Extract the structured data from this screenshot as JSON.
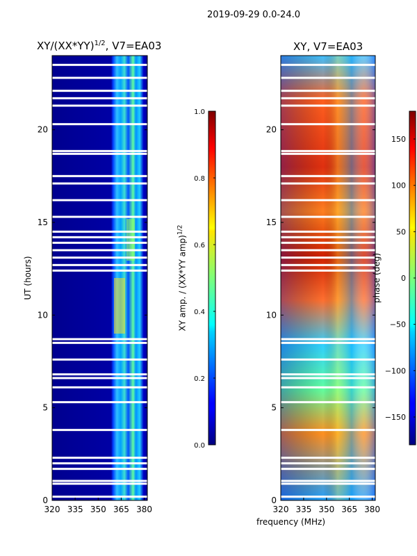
{
  "suptitle": "2019-09-29 0.0-24.0",
  "chart_data": [
    {
      "type": "heatmap",
      "title_prefix": "XY/(XX*YY)",
      "title_exp": "1/2",
      "title_suffix": ", V7=EA03",
      "xlabel": "",
      "ylabel": "UT (hours)",
      "xlim": [
        320,
        382
      ],
      "ylim": [
        0,
        24
      ],
      "xticks": [
        "320",
        "335",
        "350",
        "365",
        "380"
      ],
      "yticks": [
        "0",
        "5",
        "10",
        "15",
        "20"
      ],
      "colorbar": {
        "label_prefix": "XY amp. / (XX*YY amp)",
        "label_exp": "1/2",
        "range": [
          0.0,
          1.0
        ],
        "ticks": [
          "0.0",
          "0.2",
          "0.4",
          "0.6",
          "0.8",
          "1.0"
        ]
      }
    },
    {
      "type": "heatmap",
      "title": "XY, V7=EA03",
      "xlabel": "frequency (MHz)",
      "ylabel": "",
      "xlim": [
        320,
        382
      ],
      "ylim": [
        0,
        24
      ],
      "xticks": [
        "320",
        "335",
        "350",
        "365",
        "380"
      ],
      "yticks": [
        "0",
        "5",
        "10",
        "15",
        "20"
      ],
      "colorbar": {
        "label": "phase (deg)",
        "range": [
          -180,
          180
        ],
        "ticks": [
          "−150",
          "−100",
          "−50",
          "0",
          "50",
          "100",
          "150"
        ]
      }
    }
  ],
  "gap_hours": [
    0.2,
    0.9,
    1.05,
    1.7,
    2.0,
    2.3,
    3.8,
    5.3,
    6.1,
    6.6,
    6.8,
    7.6,
    8.5,
    8.7,
    12.4,
    12.7,
    13.1,
    13.5,
    13.9,
    14.2,
    14.5,
    15.3,
    16.2,
    17.1,
    17.5,
    18.7,
    18.85,
    20.3,
    21.3,
    21.7,
    22.1,
    22.8,
    23.5
  ]
}
